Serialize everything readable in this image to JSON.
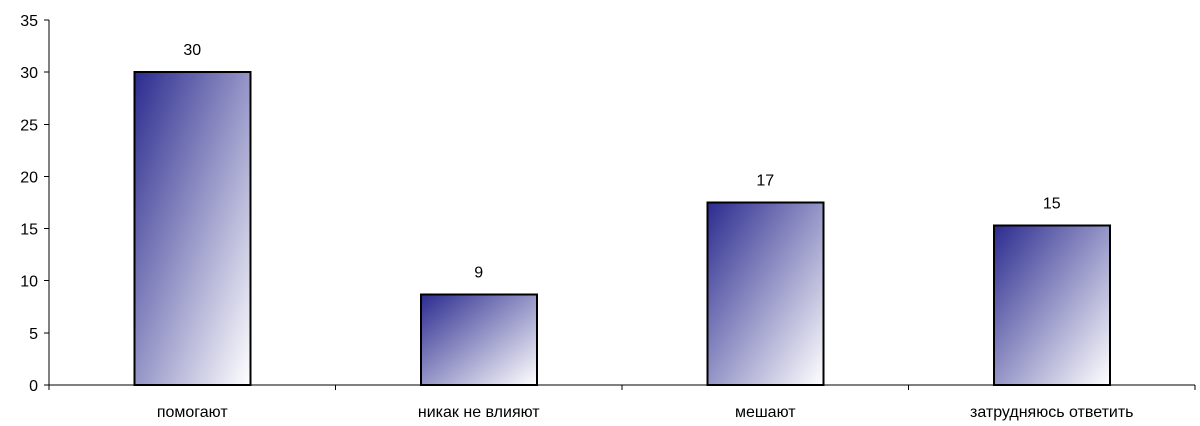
{
  "chart_data": {
    "type": "bar",
    "categories": [
      "помогают",
      "никак не влияют",
      "мешают",
      "затрудняюсь ответить"
    ],
    "values": [
      30,
      8.7,
      17.5,
      15.3
    ],
    "data_labels": [
      "30",
      "9",
      "17",
      "15"
    ],
    "ylim": [
      0,
      35
    ],
    "yticks": [
      0,
      5,
      10,
      15,
      20,
      25,
      30,
      35
    ],
    "ytick_labels": [
      "0",
      "5",
      "10",
      "15",
      "20",
      "25",
      "30",
      "35"
    ],
    "grid": false,
    "legend": "none",
    "bar_fill_start": "#2b2b8f",
    "bar_fill_end": "#ffffff",
    "bar_stroke": "#000000"
  }
}
